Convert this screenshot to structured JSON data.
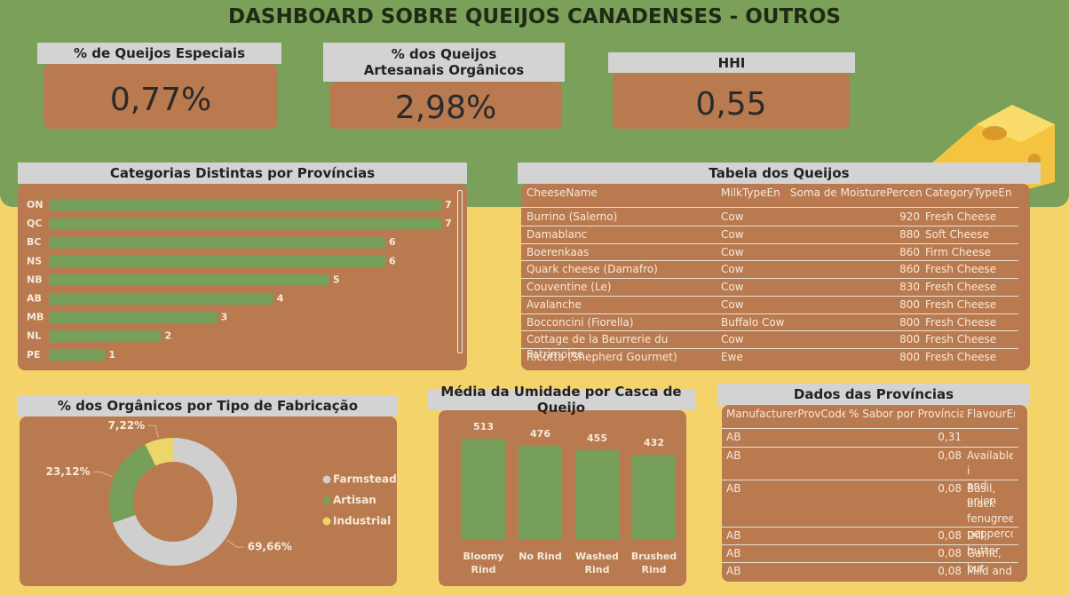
{
  "header": {
    "title": "DASHBOARD SOBRE QUEIJOS CANADENSES - OUTROS"
  },
  "kpis": [
    {
      "label": "% de Queijos Especiais",
      "value": "0,77%"
    },
    {
      "label": "% dos Queijos Artesanais Orgânicos",
      "value": "2,98%"
    },
    {
      "label": "HHI",
      "value": "0,55"
    }
  ],
  "chart_data": [
    {
      "type": "bar",
      "orientation": "horizontal",
      "title": "Categorias Distintas por Províncias",
      "categories": [
        "ON",
        "QC",
        "BC",
        "NS",
        "NB",
        "AB",
        "MB",
        "NL",
        "PE"
      ],
      "values": [
        7,
        7,
        6,
        6,
        5,
        4,
        3,
        2,
        1
      ],
      "color": "#76a05a"
    },
    {
      "type": "pie",
      "donut": true,
      "title": "% dos Orgânicos por Tipo de Fabricação",
      "categories": [
        "Farmstead",
        "Artisan",
        "Industrial"
      ],
      "values": [
        69.66,
        23.12,
        7.22
      ],
      "value_labels": [
        "69,66%",
        "23,12%",
        "7,22%"
      ],
      "colors": [
        "#cfcfcf",
        "#76a05a",
        "#ecd56a"
      ],
      "legend": "right"
    },
    {
      "type": "bar",
      "orientation": "vertical",
      "title": "Média da Umidade por Casca de Queijo",
      "categories": [
        "Bloomy Rind",
        "No Rind",
        "Washed Rind",
        "Brushed Rind"
      ],
      "values": [
        513,
        476,
        455,
        432
      ],
      "color": "#76a05a"
    }
  ],
  "cheese_table": {
    "title": "Tabela dos Queijos",
    "columns": [
      "CheeseName",
      "MilkTypeEn",
      "Soma de MoisturePercent",
      "CategoryTypeEn"
    ],
    "rows": [
      [
        "Burrino (Salerno)",
        "Cow",
        "920",
        "Fresh Cheese"
      ],
      [
        "Damablanc",
        "Cow",
        "880",
        "Soft Cheese"
      ],
      [
        "Boerenkaas",
        "Cow",
        "860",
        "Firm Cheese"
      ],
      [
        "Quark cheese (Damafro)",
        "Cow",
        "860",
        "Fresh Cheese"
      ],
      [
        "Couventine (Le)",
        "Cow",
        "830",
        "Fresh Cheese"
      ],
      [
        "Avalanche",
        "Cow",
        "800",
        "Fresh Cheese"
      ],
      [
        "Bocconcini (Fiorella)",
        "Buffalo Cow",
        "800",
        "Fresh Cheese"
      ],
      [
        "Cottage de la Beurrerie du Patrimoine",
        "Cow",
        "800",
        "Fresh Cheese"
      ],
      [
        "Ricotta (Shepherd Gourmet)",
        "Ewe",
        "800",
        "Fresh Cheese"
      ]
    ]
  },
  "province_table": {
    "title": "Dados das Províncias",
    "columns": [
      "ManufacturerProvCode",
      "% Sabor por Província",
      "FlavourEn"
    ],
    "rows": [
      [
        "AB",
        "0,31"
      ],
      [
        "AB",
        "0,08",
        "Available i\nand onion"
      ],
      [
        "AB",
        "0,08",
        "Basil, black\nfenugreek,\npeppercorn"
      ],
      [
        "AB",
        "0,08",
        "Dill, butter"
      ],
      [
        "AB",
        "0,08",
        "Garlic, but"
      ],
      [
        "AB",
        "0,08",
        "Mild and D"
      ]
    ]
  }
}
